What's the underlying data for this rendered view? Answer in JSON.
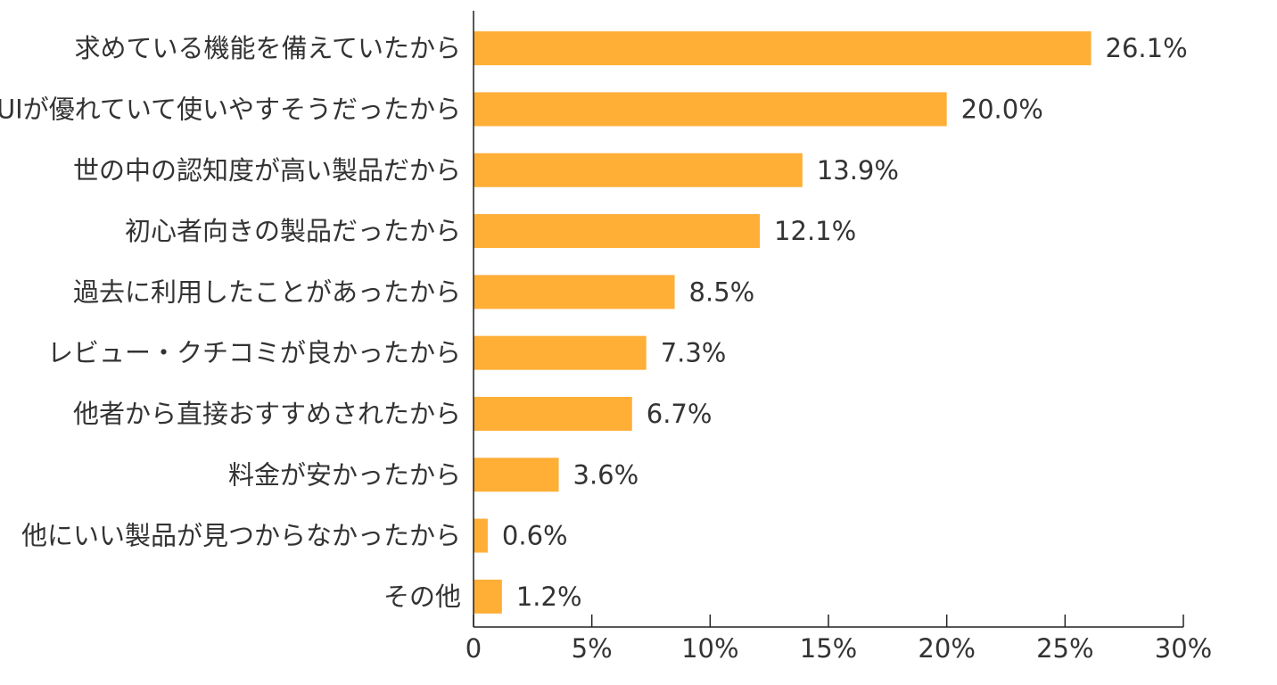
{
  "chart_data": {
    "type": "bar",
    "orientation": "horizontal",
    "categories": [
      "求めている機能を備えていたから",
      "UIが優れていて使いやすそうだったから",
      "世の中の認知度が高い製品だから",
      "初心者向きの製品だったから",
      "過去に利用したことがあったから",
      "レビュー・クチコミが良かったから",
      "他者から直接おすすめされたから",
      "料金が安かったから",
      "他にいい製品が見つからなかったから",
      "その他"
    ],
    "values": [
      26.1,
      20.0,
      13.9,
      12.1,
      8.5,
      7.3,
      6.7,
      3.6,
      0.6,
      1.2
    ],
    "value_labels": [
      "26.1%",
      "20.0%",
      "13.9%",
      "12.1%",
      "8.5%",
      "7.3%",
      "6.7%",
      "3.6%",
      "0.6%",
      "1.2%"
    ],
    "x_ticks": [
      0,
      5,
      10,
      15,
      20,
      25,
      30
    ],
    "x_tick_labels": [
      "0",
      "5%",
      "10%",
      "15%",
      "20%",
      "25%",
      "30%"
    ],
    "xlim": [
      0,
      30
    ],
    "title": "",
    "xlabel": "",
    "ylabel": "",
    "grid": false,
    "legend": "none",
    "bar_color": "#ffae36"
  }
}
